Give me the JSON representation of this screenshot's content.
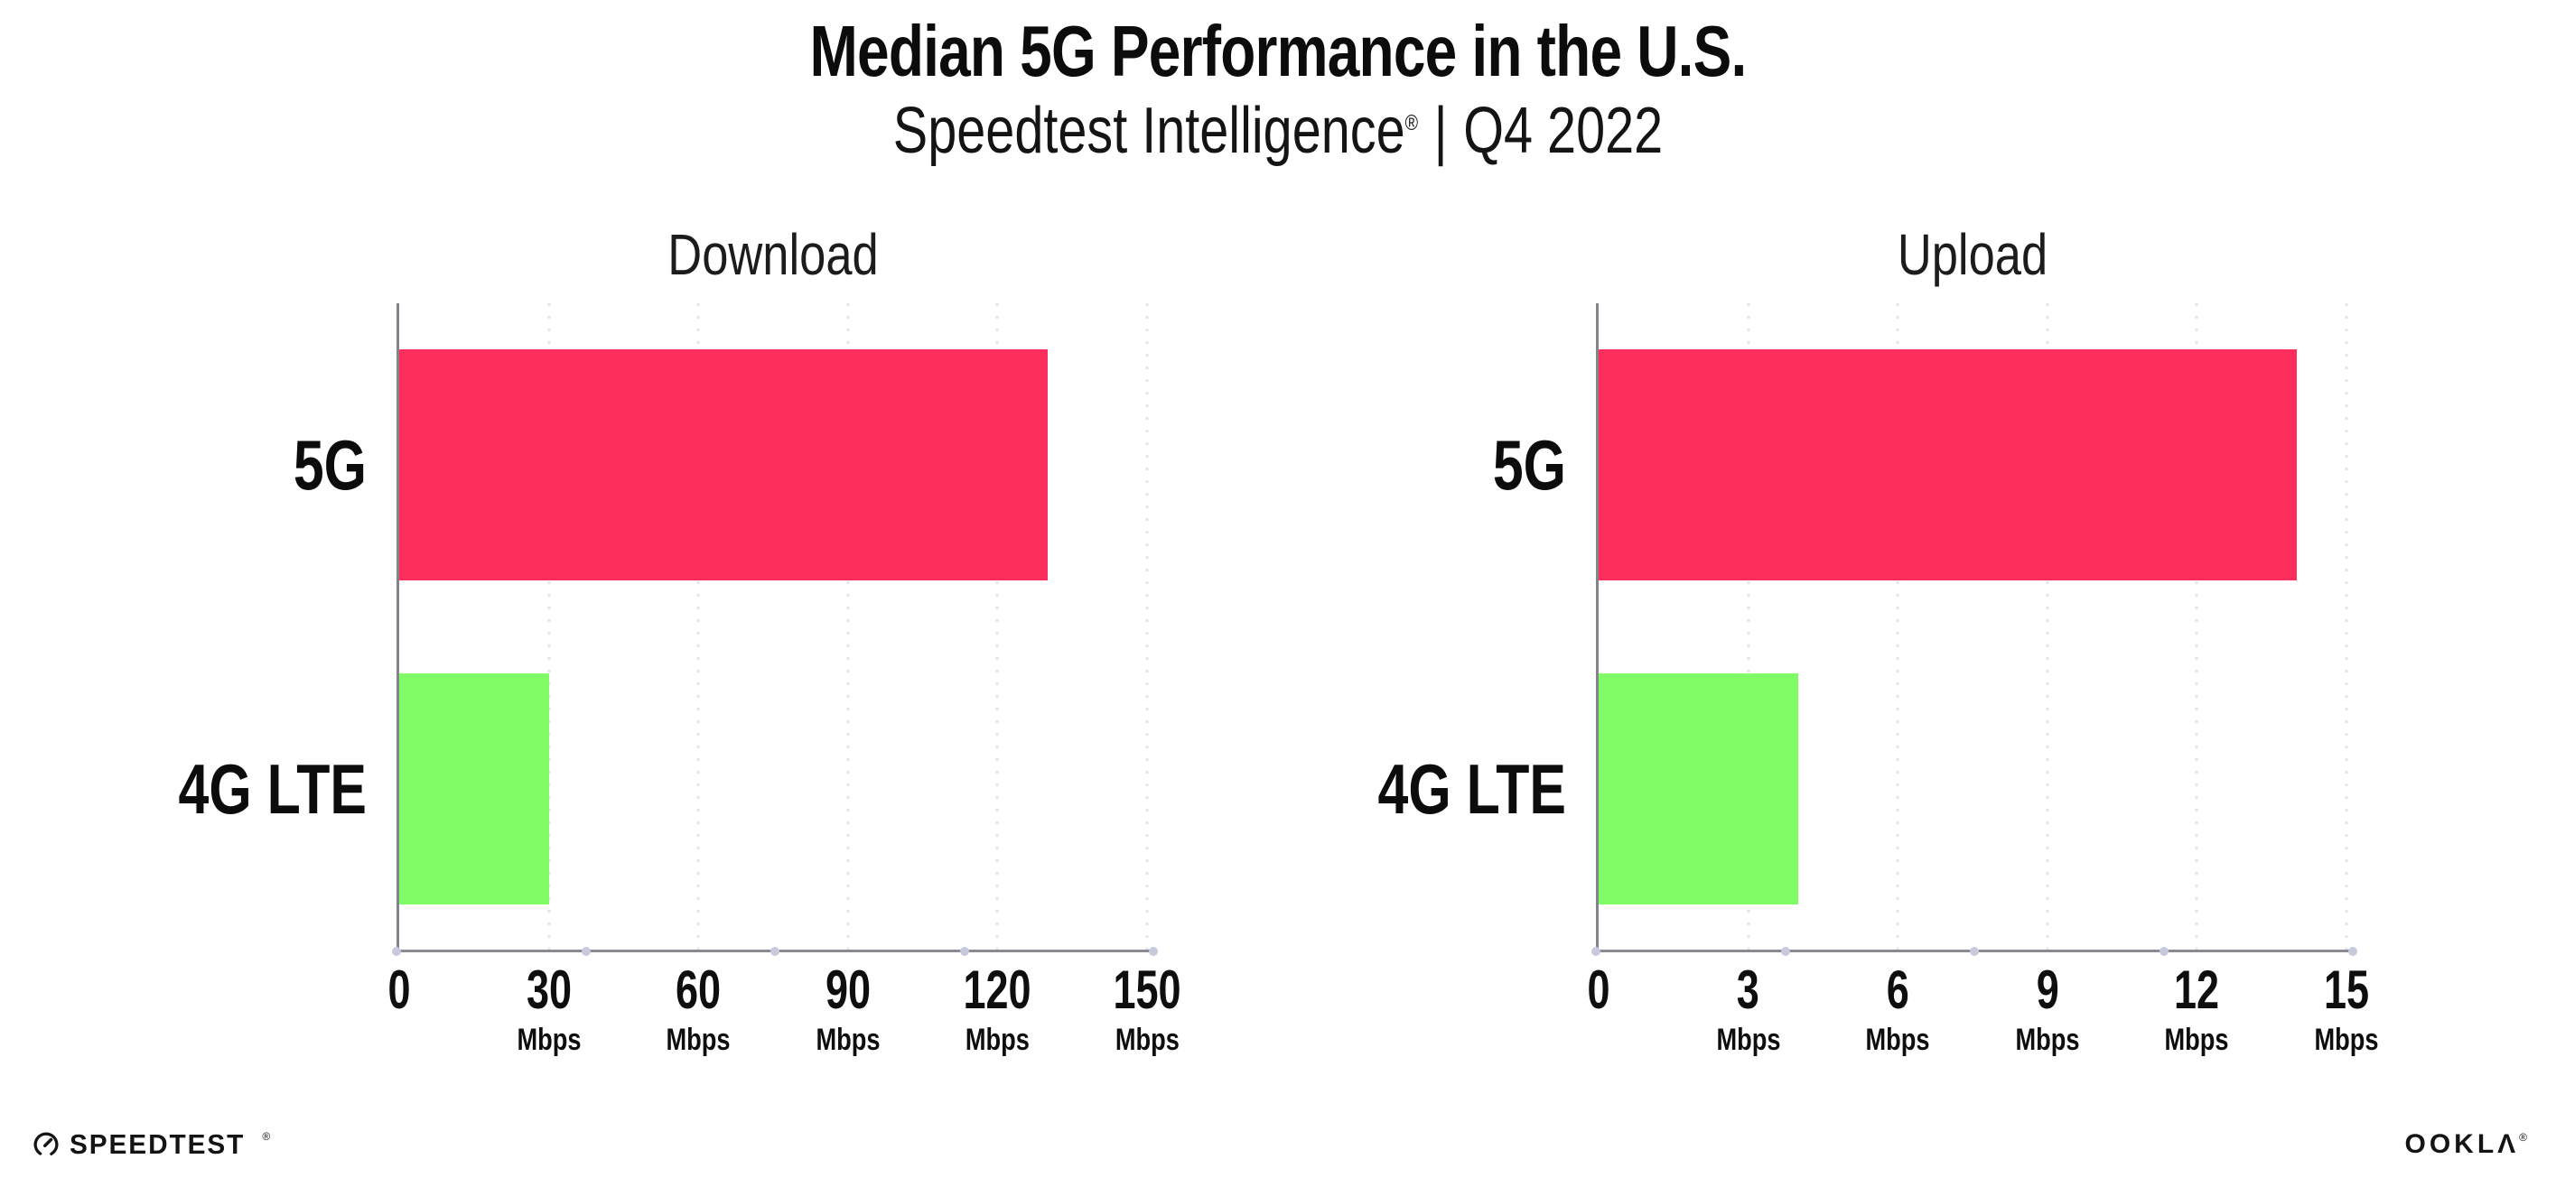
{
  "header": {
    "title": "Median 5G Performance in the U.S.",
    "subtitle_brand": "Speedtest Intelligence",
    "reg_mark": "®",
    "subtitle_sep": "|",
    "subtitle_period": "Q4 2022"
  },
  "chart_data": [
    {
      "type": "bar",
      "orientation": "horizontal",
      "title": "Download",
      "categories": [
        "5G",
        "4G LTE"
      ],
      "values": [
        130,
        30
      ],
      "unit": "Mbps",
      "xticks": [
        0,
        30,
        60,
        90,
        120,
        150
      ],
      "xlim": [
        0,
        150
      ],
      "unit_shown_on_zero_tick": false,
      "bar_colors": [
        "#FD2E5C",
        "#80FC66"
      ],
      "grid": "vertical-dotted",
      "legend": "none"
    },
    {
      "type": "bar",
      "orientation": "horizontal",
      "title": "Upload",
      "categories": [
        "5G",
        "4G LTE"
      ],
      "values": [
        14,
        4
      ],
      "unit": "Mbps",
      "xticks": [
        0,
        3,
        6,
        9,
        12,
        15
      ],
      "xlim": [
        0,
        15
      ],
      "unit_shown_on_zero_tick": false,
      "bar_colors": [
        "#FD2E5C",
        "#80FC66"
      ],
      "grid": "vertical-dotted",
      "legend": "none"
    }
  ],
  "footer": {
    "left_icon": "speedtest-gauge-icon",
    "left_label": "SPEEDTEST",
    "left_reg": "®",
    "right_label": "OOKLΛ",
    "right_reg": "®"
  },
  "colors": {
    "bar_5g": "#FD2E5C",
    "bar_4g_lte": "#80FC66",
    "axis_line": "#8b8b93",
    "axis_tick_dot": "#c6cadc",
    "gridline": "#e3e3ee",
    "text": "#0c0c0c",
    "background": "#ffffff"
  }
}
